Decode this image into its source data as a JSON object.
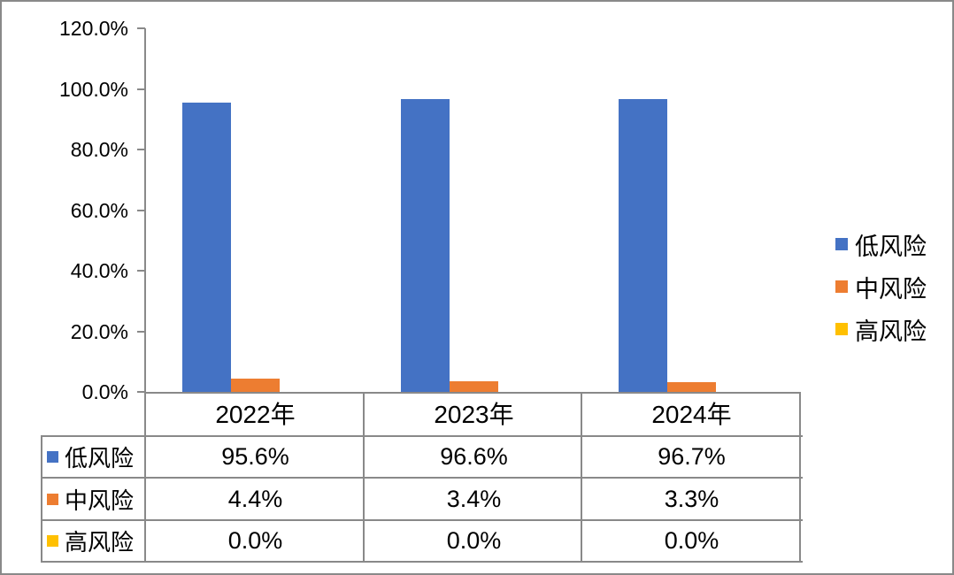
{
  "frame": {
    "border_color": "#898989",
    "background": "#ffffff",
    "line_color": "#898989"
  },
  "chart_data": {
    "type": "bar",
    "title": "",
    "xlabel": "",
    "ylabel": "",
    "categories": [
      "2022年",
      "2023年",
      "2024年"
    ],
    "series": [
      {
        "name": "低风险",
        "color": "#4472C4",
        "values": [
          95.6,
          96.6,
          96.7
        ],
        "labels": [
          "95.6%",
          "96.6%",
          "96.7%"
        ]
      },
      {
        "name": "中风险",
        "color": "#ED7D31",
        "values": [
          4.4,
          3.4,
          3.3
        ],
        "labels": [
          "4.4%",
          "3.4%",
          "3.3%"
        ]
      },
      {
        "name": "高风险",
        "color": "#FFC000",
        "values": [
          0.0,
          0.0,
          0.0
        ],
        "labels": [
          "0.0%",
          "0.0%",
          "0.0%"
        ]
      }
    ],
    "y_axis": {
      "min": 0,
      "max": 120,
      "tick_step": 20,
      "tick_labels": [
        "0.0%",
        "20.0%",
        "40.0%",
        "60.0%",
        "80.0%",
        "100.0%",
        "120.0%"
      ]
    },
    "ylim": [
      0,
      120
    ],
    "grid": "off",
    "legend": {
      "position": "right",
      "entries": [
        "低风险",
        "中风险",
        "高风险"
      ]
    },
    "data_table_shown": true
  }
}
